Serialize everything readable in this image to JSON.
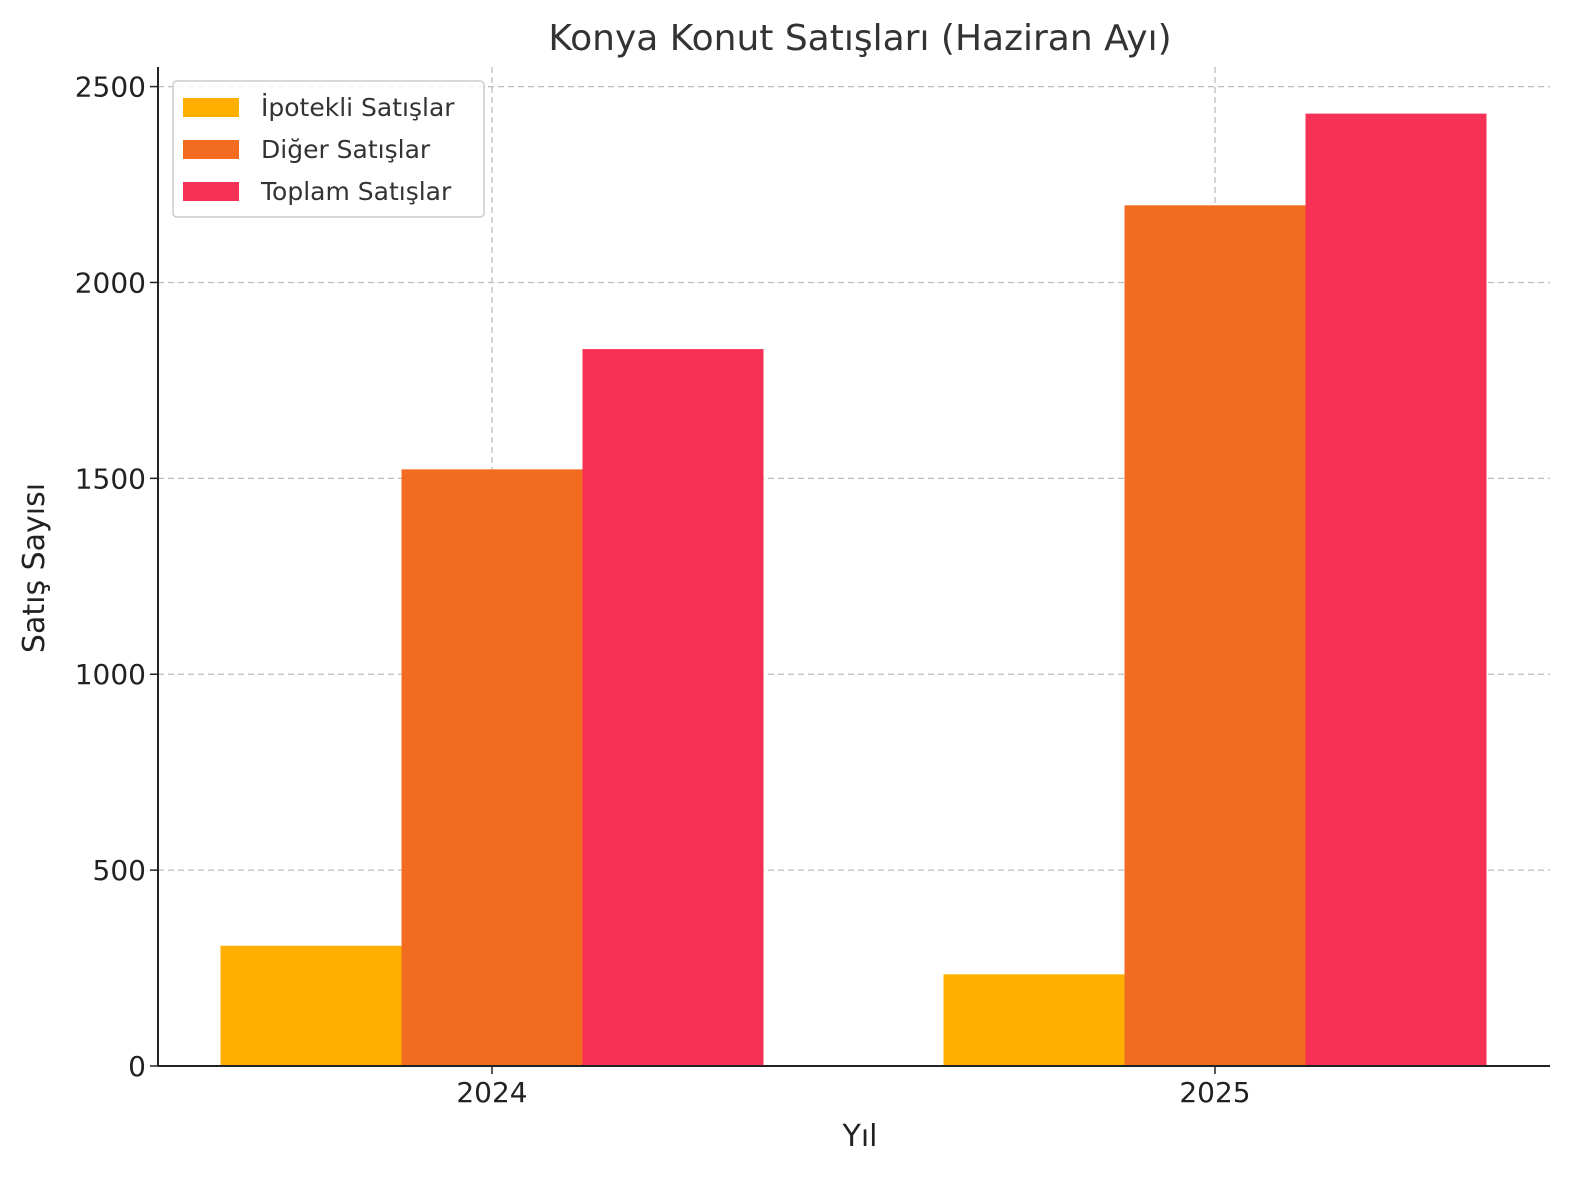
{
  "chart_data": {
    "type": "bar",
    "title": "Konya Konut Satışları (Haziran Ayı)",
    "xlabel": "Yıl",
    "ylabel": "Satış Sayısı",
    "categories": [
      "2024",
      "2025"
    ],
    "series": [
      {
        "name": "İpotekli Satışlar",
        "color": "#ffaf00",
        "values": [
          307,
          234
        ]
      },
      {
        "name": "Diğer Satışlar",
        "color": "#f26b21",
        "values": [
          1523,
          2197
        ]
      },
      {
        "name": "Toplam Satışlar",
        "color": "#f53255",
        "values": [
          1830,
          2431
        ]
      }
    ],
    "ylim": [
      0,
      2550
    ],
    "yticks": [
      0,
      500,
      1000,
      1500,
      2000,
      2500
    ],
    "grid": true,
    "legend": "top-left"
  }
}
